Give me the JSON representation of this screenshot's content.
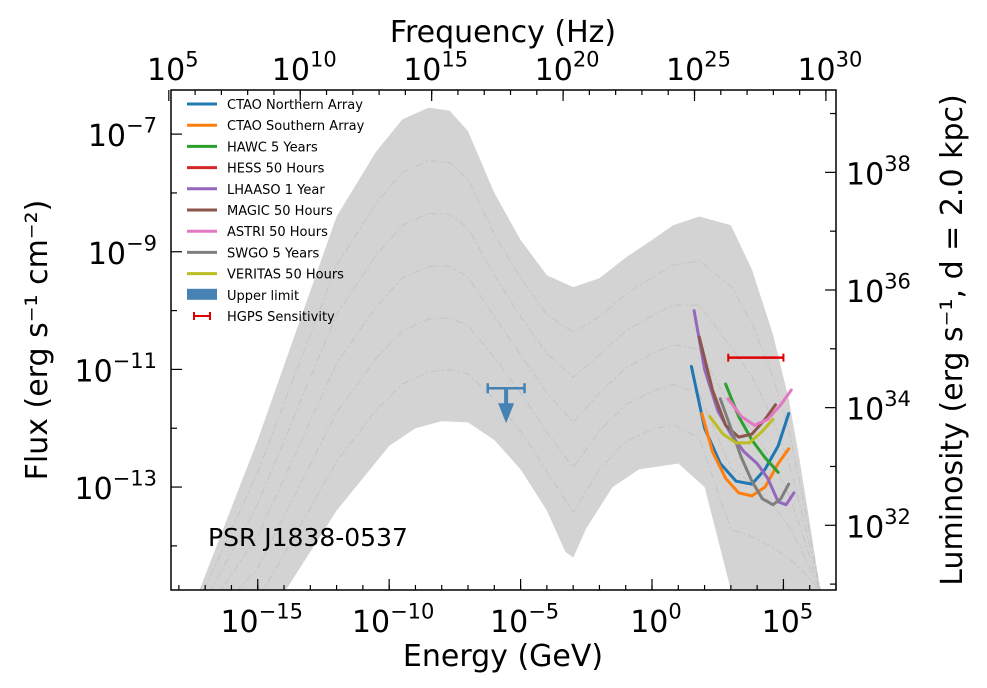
{
  "chart_data": {
    "type": "line",
    "title": "",
    "xlabel": "Energy (GeV)",
    "ylabel": "Flux (erg s⁻¹ cm⁻²)",
    "x2label": "Frequency (Hz)",
    "y2label": "Luminosity (erg s⁻¹, d = 2.0 kpc)",
    "xscale": "log",
    "yscale": "log",
    "x_log_range": [
      -18.3,
      7.0
    ],
    "y_log_range": [
      -14.75,
      -6.25
    ],
    "y2_log_range": [
      30.9,
      39.4
    ],
    "x_ticks": [
      {
        "exp": -15,
        "base": "10",
        "sup": "−15"
      },
      {
        "exp": -10,
        "base": "10",
        "sup": "−10"
      },
      {
        "exp": -5,
        "base": "10",
        "sup": "−5"
      },
      {
        "exp": 0,
        "base": "10",
        "sup": "0"
      },
      {
        "exp": 5,
        "base": "10",
        "sup": "5"
      }
    ],
    "y_ticks": [
      {
        "exp": -13,
        "base": "10",
        "sup": "−13"
      },
      {
        "exp": -11,
        "base": "10",
        "sup": "−11"
      },
      {
        "exp": -9,
        "base": "10",
        "sup": "−9"
      },
      {
        "exp": -7,
        "base": "10",
        "sup": "−7"
      }
    ],
    "y2_ticks": [
      {
        "exp": 32,
        "base": "10",
        "sup": "32"
      },
      {
        "exp": 34,
        "base": "10",
        "sup": "34"
      },
      {
        "exp": 36,
        "base": "10",
        "sup": "36"
      },
      {
        "exp": 38,
        "base": "10",
        "sup": "38"
      }
    ],
    "x2_ticks": [
      {
        "exp": 5,
        "base": "10",
        "sup": "5"
      },
      {
        "exp": 10,
        "base": "10",
        "sup": "10"
      },
      {
        "exp": 15,
        "base": "10",
        "sup": "15"
      },
      {
        "exp": 20,
        "base": "10",
        "sup": "20"
      },
      {
        "exp": 25,
        "base": "10",
        "sup": "25"
      },
      {
        "exp": 30,
        "base": "10",
        "sup": "30"
      }
    ],
    "annotation": "PSR J1838-0537",
    "model_band": {
      "color": "#d3d3d3",
      "upper": [
        [
          -18.3,
          -16.0
        ],
        [
          -15,
          -12.2
        ],
        [
          -12,
          -8.4
        ],
        [
          -10.5,
          -7.3
        ],
        [
          -9.5,
          -6.75
        ],
        [
          -8.5,
          -6.55
        ],
        [
          -7.7,
          -6.6
        ],
        [
          -7,
          -6.95
        ],
        [
          -6,
          -8.0
        ],
        [
          -5,
          -8.8
        ],
        [
          -4,
          -9.4
        ],
        [
          -3,
          -9.6
        ],
        [
          -2,
          -9.45
        ],
        [
          -1,
          -9.1
        ],
        [
          0,
          -8.8
        ],
        [
          0.8,
          -8.55
        ],
        [
          1.8,
          -8.4
        ],
        [
          3,
          -8.55
        ],
        [
          3.8,
          -9.3
        ],
        [
          4.6,
          -10.4
        ],
        [
          5.2,
          -11.5
        ],
        [
          5.6,
          -12.5
        ],
        [
          6.0,
          -13.6
        ],
        [
          6.4,
          -14.75
        ]
      ],
      "lower": [
        [
          -18.3,
          -16.0
        ],
        [
          -15.5,
          -15.8
        ],
        [
          -14,
          -14.8
        ],
        [
          -12,
          -13.4
        ],
        [
          -10,
          -12.3
        ],
        [
          -9,
          -12.0
        ],
        [
          -8,
          -11.88
        ],
        [
          -7,
          -11.9
        ],
        [
          -6,
          -12.2
        ],
        [
          -5,
          -12.7
        ],
        [
          -4,
          -13.4
        ],
        [
          -3.3,
          -14.1
        ],
        [
          -3,
          -14.2
        ],
        [
          -2.5,
          -13.7
        ],
        [
          -1.5,
          -13.0
        ],
        [
          -0.5,
          -12.7
        ],
        [
          1,
          -12.6
        ],
        [
          2,
          -13.0
        ],
        [
          3,
          -14.75
        ]
      ]
    },
    "upper_limit": {
      "x_range": [
        -6.25,
        -4.85
      ],
      "y": -11.32,
      "arrow_to": -11.78,
      "color": "#4682b4"
    },
    "hgps_sensitivity": {
      "x_range": [
        2.9,
        5.0
      ],
      "y": -10.8,
      "color": "#e00000"
    },
    "series": [
      {
        "name": "CTAO Northern Array",
        "color": "#1f77b4",
        "points": [
          [
            1.5,
            -10.95
          ],
          [
            2,
            -12.0
          ],
          [
            2.6,
            -12.6
          ],
          [
            3.2,
            -12.9
          ],
          [
            3.8,
            -12.95
          ],
          [
            4.3,
            -12.7
          ],
          [
            4.8,
            -12.3
          ],
          [
            5.2,
            -11.75
          ]
        ]
      },
      {
        "name": "CTAO Southern Array",
        "color": "#ff7f0e",
        "points": [
          [
            1.9,
            -11.75
          ],
          [
            2.3,
            -12.4
          ],
          [
            2.8,
            -12.85
          ],
          [
            3.3,
            -13.1
          ],
          [
            3.8,
            -13.15
          ],
          [
            4.3,
            -13.0
          ],
          [
            4.8,
            -12.6
          ],
          [
            5.2,
            -12.35
          ]
        ]
      },
      {
        "name": "HAWC 5 Years",
        "color": "#2ca02c",
        "points": [
          [
            2.8,
            -11.25
          ],
          [
            3.3,
            -11.8
          ],
          [
            3.8,
            -12.2
          ],
          [
            4.3,
            -12.5
          ],
          [
            4.8,
            -12.75
          ]
        ]
      },
      {
        "name": "HESS 50 Hours",
        "color": "#d62728",
        "points": []
      },
      {
        "name": "LHAASO 1 Year",
        "color": "#9467bd",
        "points": [
          [
            1.6,
            -10.0
          ],
          [
            2,
            -11.0
          ],
          [
            2.5,
            -11.7
          ],
          [
            3,
            -12.1
          ],
          [
            3.5,
            -12.4
          ],
          [
            4,
            -12.6
          ],
          [
            4.4,
            -12.85
          ],
          [
            4.8,
            -13.25
          ],
          [
            5.1,
            -13.3
          ],
          [
            5.4,
            -13.1
          ]
        ]
      },
      {
        "name": "MAGIC 50 Hours",
        "color": "#8c564b",
        "points": [
          [
            1.8,
            -10.45
          ],
          [
            2.3,
            -11.35
          ],
          [
            2.8,
            -11.95
          ],
          [
            3.3,
            -12.15
          ],
          [
            3.8,
            -12.1
          ],
          [
            4.3,
            -11.85
          ],
          [
            4.7,
            -11.6
          ]
        ]
      },
      {
        "name": "ASTRI 50 Hours",
        "color": "#e377c2",
        "points": [
          [
            2.9,
            -11.5
          ],
          [
            3.4,
            -11.8
          ],
          [
            3.9,
            -11.95
          ],
          [
            4.4,
            -11.85
          ],
          [
            4.9,
            -11.6
          ],
          [
            5.3,
            -11.35
          ]
        ]
      },
      {
        "name": "SWGO 5 Years",
        "color": "#7f7f7f",
        "points": [
          [
            2.6,
            -11.5
          ],
          [
            3,
            -12.0
          ],
          [
            3.4,
            -12.5
          ],
          [
            3.8,
            -12.9
          ],
          [
            4.2,
            -13.2
          ],
          [
            4.6,
            -13.3
          ],
          [
            4.9,
            -13.2
          ],
          [
            5.2,
            -12.95
          ]
        ]
      },
      {
        "name": "VERITAS 50 Hours",
        "color": "#bcbd22",
        "points": [
          [
            2.2,
            -11.8
          ],
          [
            2.7,
            -12.1
          ],
          [
            3.2,
            -12.25
          ],
          [
            3.7,
            -12.25
          ],
          [
            4.2,
            -12.05
          ],
          [
            4.6,
            -11.85
          ]
        ]
      }
    ],
    "legend": {
      "position": "top-left",
      "entries": [
        {
          "label": "CTAO Northern Array",
          "color": "#1f77b4",
          "kind": "line"
        },
        {
          "label": "CTAO Southern Array",
          "color": "#ff7f0e",
          "kind": "line"
        },
        {
          "label": "HAWC 5 Years",
          "color": "#2ca02c",
          "kind": "line"
        },
        {
          "label": "HESS 50 Hours",
          "color": "#d62728",
          "kind": "line"
        },
        {
          "label": "LHAASO 1 Year",
          "color": "#9467bd",
          "kind": "line"
        },
        {
          "label": "MAGIC 50 Hours",
          "color": "#8c564b",
          "kind": "line"
        },
        {
          "label": "ASTRI 50 Hours",
          "color": "#e377c2",
          "kind": "line"
        },
        {
          "label": "SWGO 5 Years",
          "color": "#7f7f7f",
          "kind": "line"
        },
        {
          "label": "VERITAS 50 Hours",
          "color": "#bcbd22",
          "kind": "line"
        },
        {
          "label": "Upper limit",
          "color": "#4682b4",
          "kind": "patch"
        },
        {
          "label": "HGPS Sensitivity",
          "color": "#e00000",
          "kind": "errorbar"
        }
      ]
    }
  }
}
